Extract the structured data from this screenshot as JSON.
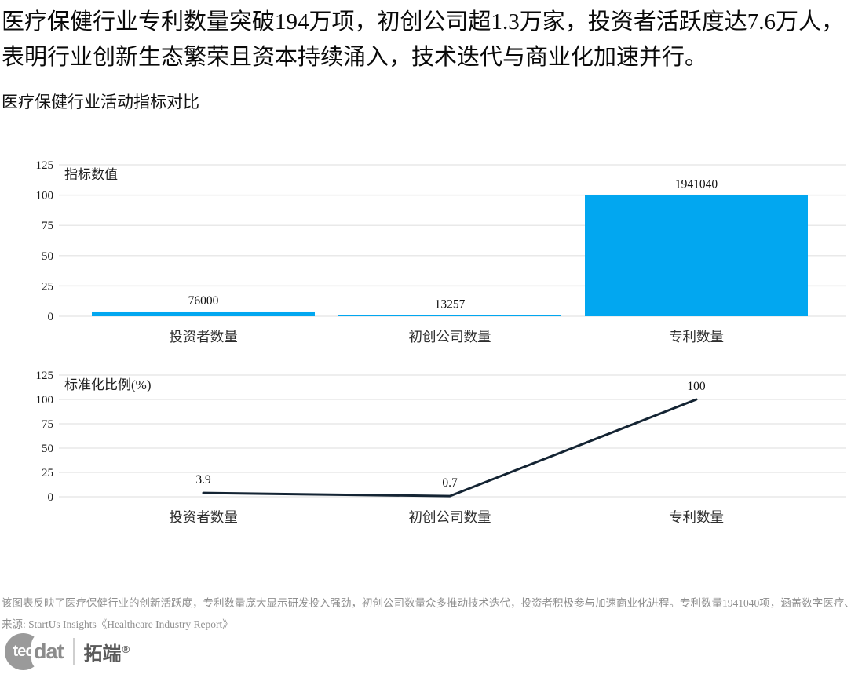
{
  "headline": {
    "line1": "医疗保健行业专利数量突破194万项，初创公司超1.3万家，投资者活跃度达7.6万人，",
    "line2": "表明行业创新生态繁荣且资本持续涌入，技术迭代与商业化加速并行。"
  },
  "section_title": "医疗保健行业活动指标对比",
  "chart_data": [
    {
      "type": "bar",
      "title": "指标数值",
      "categories": [
        "投资者数量",
        "初创公司数量",
        "专利数量"
      ],
      "values": [
        76000,
        13257,
        1941040
      ],
      "plotted_normalized_values": [
        3.9,
        0.7,
        100
      ],
      "value_labels": [
        "76000",
        "13257",
        "1941040"
      ],
      "yticks": [
        0,
        25,
        50,
        75,
        100,
        125
      ],
      "ylim": [
        0,
        125
      ],
      "grid": "horizontal",
      "bar_color": "#02a7f0"
    },
    {
      "type": "line",
      "title": "标准化比例(%)",
      "categories": [
        "投资者数量",
        "初创公司数量",
        "专利数量"
      ],
      "values": [
        3.9,
        0.7,
        100
      ],
      "value_labels": [
        "3.9",
        "0.7",
        "100"
      ],
      "yticks": [
        0,
        25,
        50,
        75,
        100,
        125
      ],
      "ylim": [
        0,
        125
      ],
      "grid": "horizontal",
      "line_color": "#142433"
    }
  ],
  "footer": {
    "description": "该图表反映了医疗保健行业的创新活跃度，专利数量庞大显示研发投入强劲，初创公司数量众多推动技术迭代，投资者积极参与加速商业化进程。专利数量1941040项，涵盖数字医疗、",
    "source": "来源: StartUs Insights《Healthcare Industry Report》"
  },
  "logo": {
    "circle_text": "tec",
    "suffix_text": "dat",
    "brand": "拓端",
    "registered": "®"
  },
  "colors": {
    "bar": "#02a7f0",
    "line": "#142433",
    "grid": "#e9e9e9",
    "tick_text": "#1a1a1a",
    "footer_text": "#8f8f8f"
  }
}
